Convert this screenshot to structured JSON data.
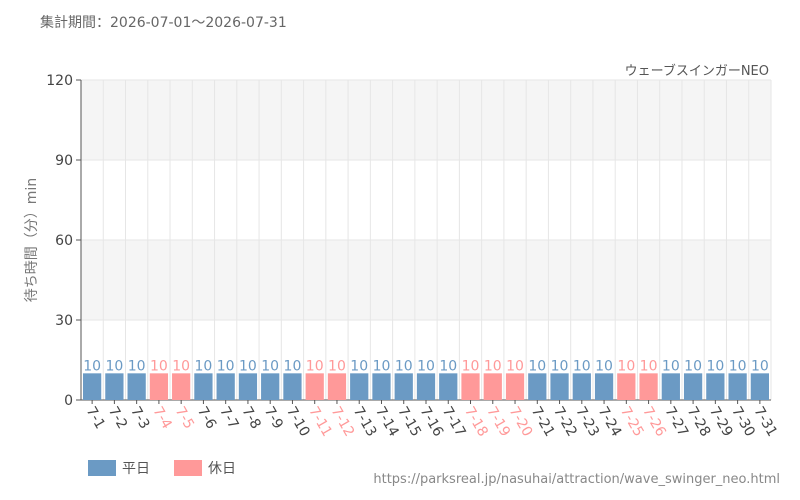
{
  "header": {
    "period_label": "集計期間：2026-07-01～2026-07-31"
  },
  "footer": {
    "url": "https://parksreal.jp/nasuhai/attraction/wave_swinger_neo.html"
  },
  "colors": {
    "weekday": "#6b9ac4",
    "holiday": "#ff9999",
    "band": "#f5f5f5",
    "grid": "#e6e6e6",
    "axis": "#555555"
  },
  "legend": {
    "weekday": "平日",
    "holiday": "休日"
  },
  "chart_data": {
    "type": "bar",
    "title": "ウェーブスインガーNEO",
    "xlabel": "",
    "ylabel": "待ち時間（分）min",
    "ylim": [
      0,
      120
    ],
    "yticks": [
      0,
      30,
      60,
      90,
      120
    ],
    "grid": true,
    "legend_position": "bottom-left",
    "categories": [
      "7-1",
      "7-2",
      "7-3",
      "7-4",
      "7-5",
      "7-6",
      "7-7",
      "7-8",
      "7-9",
      "7-10",
      "7-11",
      "7-12",
      "7-13",
      "7-14",
      "7-15",
      "7-16",
      "7-17",
      "7-18",
      "7-19",
      "7-20",
      "7-21",
      "7-22",
      "7-23",
      "7-24",
      "7-25",
      "7-26",
      "7-27",
      "7-28",
      "7-29",
      "7-30",
      "7-31"
    ],
    "values": [
      10,
      10,
      10,
      10,
      10,
      10,
      10,
      10,
      10,
      10,
      10,
      10,
      10,
      10,
      10,
      10,
      10,
      10,
      10,
      10,
      10,
      10,
      10,
      10,
      10,
      10,
      10,
      10,
      10,
      10,
      10
    ],
    "day_type": [
      "weekday",
      "weekday",
      "weekday",
      "holiday",
      "holiday",
      "weekday",
      "weekday",
      "weekday",
      "weekday",
      "weekday",
      "holiday",
      "holiday",
      "weekday",
      "weekday",
      "weekday",
      "weekday",
      "weekday",
      "holiday",
      "holiday",
      "holiday",
      "weekday",
      "weekday",
      "weekday",
      "weekday",
      "holiday",
      "holiday",
      "weekday",
      "weekday",
      "weekday",
      "weekday",
      "weekday"
    ]
  }
}
